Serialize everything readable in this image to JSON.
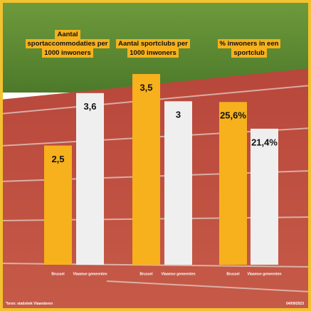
{
  "chart_data": [
    {
      "type": "bar",
      "title": "Aantal sportaccommodaties per 1000 inwoners",
      "categories": [
        "Brussel",
        "Vlaamse gemeenten"
      ],
      "values": [
        2.5,
        3.6
      ],
      "value_labels": [
        "2,5",
        "3,6"
      ],
      "colors": [
        "#f6b11c",
        "#efefef"
      ],
      "ylim": [
        0,
        4
      ]
    },
    {
      "type": "bar",
      "title": "Aantal sportclubs per 1000 inwoners",
      "categories": [
        "Brussel",
        "Vlaamse gemeenten"
      ],
      "values": [
        3.5,
        3
      ],
      "value_labels": [
        "3,5",
        "3"
      ],
      "colors": [
        "#f6b11c",
        "#efefef"
      ],
      "ylim": [
        0,
        3.5
      ]
    },
    {
      "type": "bar",
      "title": "% inwoners in een sportclub",
      "categories": [
        "Brussel",
        "Vlaamse gemeenten"
      ],
      "values": [
        25.6,
        21.4
      ],
      "value_labels": [
        "25,6%",
        "21,4%"
      ],
      "colors": [
        "#f6b11c",
        "#efefef"
      ],
      "ylim": [
        0,
        30
      ]
    }
  ],
  "source": "*bron: statistiek Vlaanderen",
  "date": "04/09/2023"
}
